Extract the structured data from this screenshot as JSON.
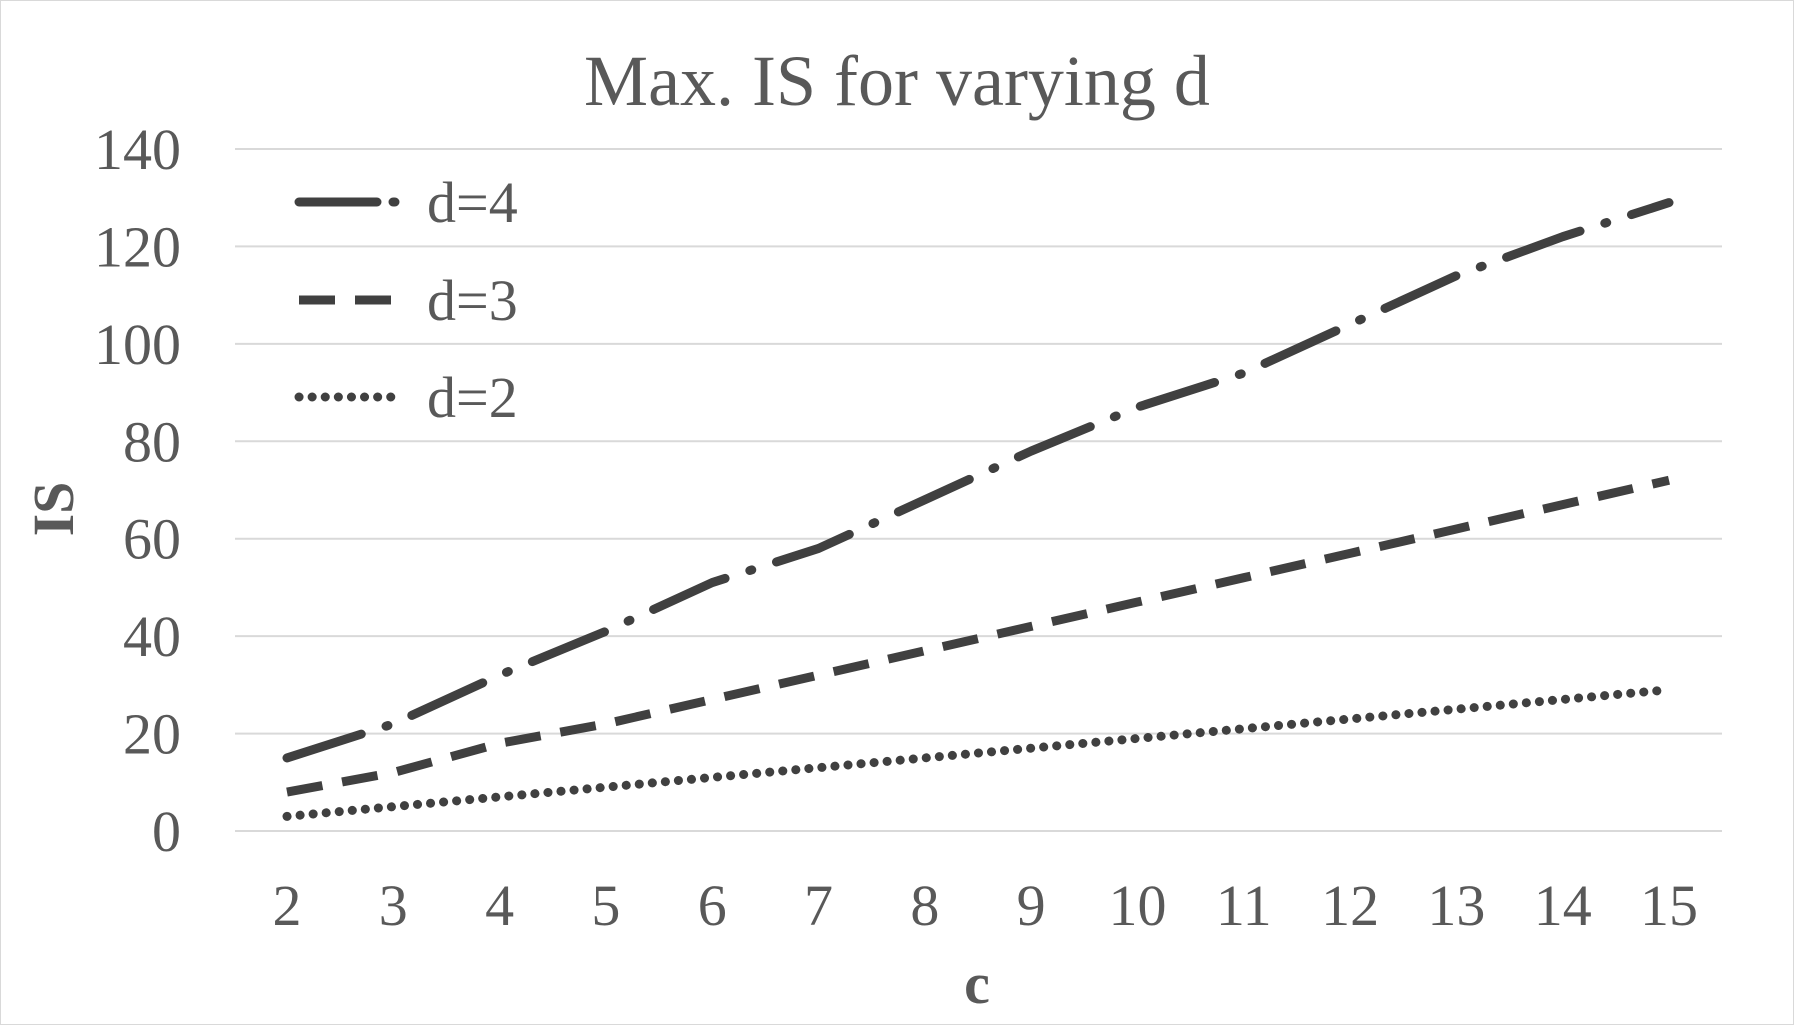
{
  "chart_data": {
    "type": "line",
    "title": "Max. IS for varying d",
    "xlabel": "c",
    "ylabel": "IS",
    "categories": [
      "2",
      "3",
      "4",
      "5",
      "6",
      "7",
      "8",
      "9",
      "10",
      "11",
      "12",
      "13",
      "14",
      "15"
    ],
    "x": [
      2,
      3,
      4,
      5,
      6,
      7,
      8,
      9,
      10,
      11,
      12,
      13,
      14,
      15
    ],
    "ylim": [
      0,
      140
    ],
    "yticks": [
      "0",
      "20",
      "40",
      "60",
      "80",
      "100",
      "120",
      "140"
    ],
    "grid": true,
    "legend_position": "top-left",
    "series": [
      {
        "name": "d=4",
        "style": "dash-dot",
        "values": [
          15,
          22,
          32,
          41,
          51,
          58,
          68,
          78,
          87,
          94,
          104,
          114,
          122,
          129
        ]
      },
      {
        "name": "d=3",
        "style": "dash",
        "values": [
          8,
          12,
          18,
          22,
          27,
          32,
          37,
          42,
          47,
          52,
          57,
          62,
          67,
          72
        ]
      },
      {
        "name": "d=2",
        "style": "dot",
        "values": [
          3,
          5,
          7,
          9,
          11,
          13,
          15,
          17,
          19,
          21,
          23,
          25,
          27,
          29
        ]
      }
    ],
    "colors": {
      "line": "#404040",
      "grid": "#d9d9d9",
      "text": "#595959"
    }
  }
}
